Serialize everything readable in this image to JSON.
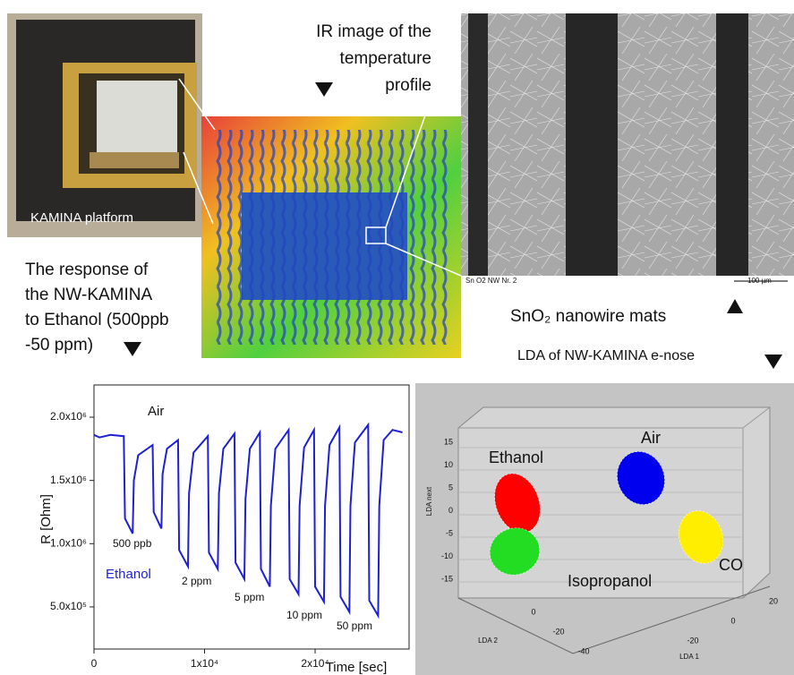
{
  "platform_photo": {
    "label": "KAMINA platform"
  },
  "ir_caption": [
    "IR image of the",
    "temperature",
    "profile"
  ],
  "sem_image": {
    "caption_left": "Sn O2 NW Nr. 2",
    "scale_bar": "100 µm"
  },
  "sem_caption": "SnO₂ nanowire mats",
  "response_caption": [
    "The response of",
    "the  NW-KAMINA",
    "to Ethanol (500ppb",
    "-50 ppm)"
  ],
  "chart_data": {
    "type": "line",
    "color": "#1f1fd6",
    "x_label": "Time [sec]",
    "y_label": "R [Ohm]",
    "annotations": [
      "Air",
      "500 ppb",
      "Ethanol",
      "2 ppm",
      "5 ppm",
      "10 ppm",
      "50 ppm"
    ],
    "xlim": [
      0,
      28500
    ],
    "ylim": [
      167000,
      2255000
    ],
    "xticks": [
      0,
      {
        "value": 10000,
        "label": "1x10⁴"
      },
      {
        "value": 20000,
        "label": "2x10⁴"
      }
    ],
    "yticks": [
      {
        "value": 500000,
        "label": "5.0x10⁵"
      },
      {
        "value": 1000000,
        "label": "1.0x10⁶"
      },
      {
        "value": 1500000,
        "label": "1.5x10⁶"
      },
      {
        "value": 2000000,
        "label": "2.0x10⁶"
      }
    ],
    "x": [
      0,
      500,
      1500,
      2700,
      2800,
      3500,
      3600,
      4000,
      5300,
      5400,
      6100,
      6200,
      6600,
      7600,
      7700,
      8500,
      8600,
      9000,
      10300,
      10400,
      11200,
      11300,
      11700,
      12700,
      12800,
      13600,
      13700,
      14100,
      15000,
      15100,
      15900,
      16000,
      16400,
      17600,
      17700,
      18500,
      18600,
      19000,
      19900,
      20000,
      20800,
      20900,
      21300,
      22200,
      22300,
      23100,
      23200,
      23600,
      24800,
      24900,
      25700,
      25800,
      26200,
      27000,
      27900
    ],
    "values": [
      1860000,
      1840000,
      1860000,
      1850000,
      1200000,
      1080000,
      1500000,
      1700000,
      1780000,
      1250000,
      1120000,
      1550000,
      1750000,
      1820000,
      950000,
      820000,
      1400000,
      1720000,
      1850000,
      930000,
      800000,
      1400000,
      1750000,
      1870000,
      850000,
      720000,
      1350000,
      1750000,
      1880000,
      800000,
      660000,
      1300000,
      1750000,
      1900000,
      720000,
      600000,
      1300000,
      1760000,
      1900000,
      660000,
      540000,
      1300000,
      1780000,
      1920000,
      580000,
      460000,
      1300000,
      1800000,
      1940000,
      550000,
      430000,
      1300000,
      1820000,
      1900000,
      1880000
    ]
  },
  "lda_plot": {
    "title": "LDA of NW-KAMINA e-nose",
    "z_label": "LDA next",
    "y_label": "LDA 2",
    "x_label": "LDA 1",
    "z_ticks": [
      15,
      10,
      5,
      0,
      -5,
      -10,
      -15
    ],
    "y_ticks": [
      0,
      -20,
      -40
    ],
    "x_ticks": [
      -20,
      0,
      20
    ],
    "clusters": [
      {
        "name": "Ethanol",
        "color": "#ff0000"
      },
      {
        "name": "Air",
        "color": "#0000ee"
      },
      {
        "name": "CO",
        "color": "#ffee00"
      },
      {
        "name": "Isopropanol",
        "color": "#22dd22"
      }
    ]
  }
}
